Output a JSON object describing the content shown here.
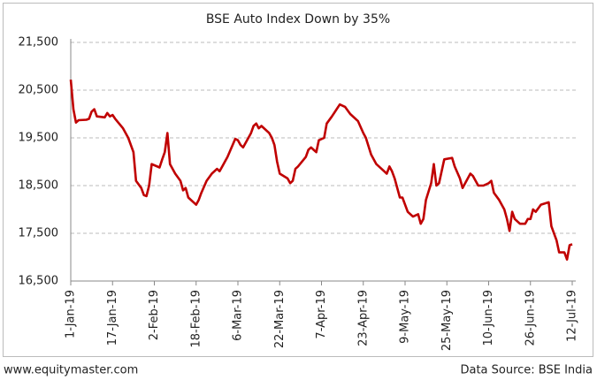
{
  "chart_data": {
    "type": "line",
    "title": "BSE Auto Index Down by 35%",
    "x": [
      "2019-01-01",
      "2019-01-02",
      "2019-01-03",
      "2019-01-04",
      "2019-01-07",
      "2019-01-08",
      "2019-01-09",
      "2019-01-10",
      "2019-01-11",
      "2019-01-14",
      "2019-01-15",
      "2019-01-16",
      "2019-01-17",
      "2019-01-18",
      "2019-01-21",
      "2019-01-23",
      "2019-01-25",
      "2019-01-26",
      "2019-01-28",
      "2019-01-29",
      "2019-01-30",
      "2019-01-31",
      "2019-02-01",
      "2019-02-04",
      "2019-02-05",
      "2019-02-06",
      "2019-02-07",
      "2019-02-08",
      "2019-02-10",
      "2019-02-12",
      "2019-02-13",
      "2019-02-14",
      "2019-02-15",
      "2019-02-17",
      "2019-02-18",
      "2019-02-19",
      "2019-02-20",
      "2019-02-22",
      "2019-02-24",
      "2019-02-26",
      "2019-02-27",
      "2019-02-28",
      "2019-03-02",
      "2019-03-05",
      "2019-03-06",
      "2019-03-07",
      "2019-03-08",
      "2019-03-11",
      "2019-03-12",
      "2019-03-13",
      "2019-03-14",
      "2019-03-15",
      "2019-03-18",
      "2019-03-19",
      "2019-03-20",
      "2019-03-21",
      "2019-03-22",
      "2019-03-25",
      "2019-03-26",
      "2019-03-27",
      "2019-03-28",
      "2019-03-29",
      "2019-04-01",
      "2019-04-02",
      "2019-04-03",
      "2019-04-04",
      "2019-04-05",
      "2019-04-06",
      "2019-04-08",
      "2019-04-09",
      "2019-04-11",
      "2019-04-14",
      "2019-04-16",
      "2019-04-18",
      "2019-04-21",
      "2019-04-23",
      "2019-04-24",
      "2019-04-26",
      "2019-04-28",
      "2019-04-30",
      "2019-05-01",
      "2019-05-02",
      "2019-05-03",
      "2019-05-04",
      "2019-05-05",
      "2019-05-07",
      "2019-05-08",
      "2019-05-10",
      "2019-05-12",
      "2019-05-14",
      "2019-05-15",
      "2019-05-16",
      "2019-05-17",
      "2019-05-19",
      "2019-05-20",
      "2019-05-21",
      "2019-05-22",
      "2019-05-24",
      "2019-05-27",
      "2019-05-28",
      "2019-05-30",
      "2019-05-31",
      "2019-06-02",
      "2019-06-03",
      "2019-06-04",
      "2019-06-06",
      "2019-06-08",
      "2019-06-10",
      "2019-06-11",
      "2019-06-12",
      "2019-06-14",
      "2019-06-16",
      "2019-06-17",
      "2019-06-18",
      "2019-06-19",
      "2019-06-20",
      "2019-06-22",
      "2019-06-24",
      "2019-06-25",
      "2019-06-26",
      "2019-06-27",
      "2019-06-28",
      "2019-06-30",
      "2019-07-03",
      "2019-07-04",
      "2019-07-06",
      "2019-07-07",
      "2019-07-09",
      "2019-07-10",
      "2019-07-11",
      "2019-07-12"
    ],
    "series": [
      {
        "name": "BSE Auto",
        "color": "#c00000",
        "values": [
          20720,
          20100,
          19820,
          19870,
          19880,
          19900,
          20050,
          20100,
          19950,
          19930,
          20020,
          19950,
          19980,
          19900,
          19700,
          19500,
          19200,
          18600,
          18450,
          18300,
          18280,
          18500,
          18950,
          18880,
          19050,
          19200,
          19600,
          18950,
          18750,
          18600,
          18400,
          18450,
          18250,
          18150,
          18100,
          18200,
          18350,
          18600,
          18750,
          18850,
          18800,
          18900,
          19100,
          19480,
          19450,
          19350,
          19300,
          19600,
          19750,
          19800,
          19700,
          19750,
          19600,
          19500,
          19350,
          19000,
          18750,
          18650,
          18550,
          18600,
          18850,
          18900,
          19100,
          19250,
          19300,
          19250,
          19200,
          19450,
          19500,
          19800,
          19950,
          20200,
          20150,
          20000,
          19850,
          19600,
          19500,
          19150,
          18950,
          18850,
          18800,
          18750,
          18900,
          18800,
          18650,
          18250,
          18250,
          17950,
          17850,
          17900,
          17700,
          17800,
          18200,
          18550,
          18950,
          18500,
          18550,
          19050,
          19080,
          18900,
          18650,
          18450,
          18650,
          18750,
          18700,
          18500,
          18500,
          18550,
          18600,
          18350,
          18200,
          18000,
          17800,
          17550,
          17950,
          17800,
          17700,
          17700,
          17800,
          17800,
          18000,
          17950,
          18100,
          18150,
          17650,
          17350,
          17100,
          17100,
          16950,
          17250,
          17270
        ]
      }
    ],
    "xlim": [
      "2019-01-01",
      "2019-07-12"
    ],
    "xticks": [
      {
        "value": "2019-01-01",
        "label": "1-Jan-19"
      },
      {
        "value": "2019-01-17",
        "label": "17-Jan-19"
      },
      {
        "value": "2019-02-02",
        "label": "2-Feb-19"
      },
      {
        "value": "2019-02-18",
        "label": "18-Feb-19"
      },
      {
        "value": "2019-03-06",
        "label": "6-Mar-19"
      },
      {
        "value": "2019-03-22",
        "label": "22-Mar-19"
      },
      {
        "value": "2019-04-07",
        "label": "7-Apr-19"
      },
      {
        "value": "2019-04-23",
        "label": "23-Apr-19"
      },
      {
        "value": "2019-05-09",
        "label": "9-May-19"
      },
      {
        "value": "2019-05-25",
        "label": "25-May-19"
      },
      {
        "value": "2019-06-10",
        "label": "10-Jun-19"
      },
      {
        "value": "2019-06-26",
        "label": "26-Jun-19"
      },
      {
        "value": "2019-07-12",
        "label": "12-Jul-19"
      }
    ],
    "ylim": [
      16500,
      21500
    ],
    "yticks": [
      {
        "value": 16500,
        "label": "16,500"
      },
      {
        "value": 17500,
        "label": "17,500"
      },
      {
        "value": 18500,
        "label": "18,500"
      },
      {
        "value": 19500,
        "label": "19,500"
      },
      {
        "value": 20500,
        "label": "20,500"
      },
      {
        "value": 21500,
        "label": "21,500"
      }
    ],
    "grid": true,
    "footer_left": "www.equitymaster.com",
    "footer_right": "Data Source: BSE India"
  }
}
